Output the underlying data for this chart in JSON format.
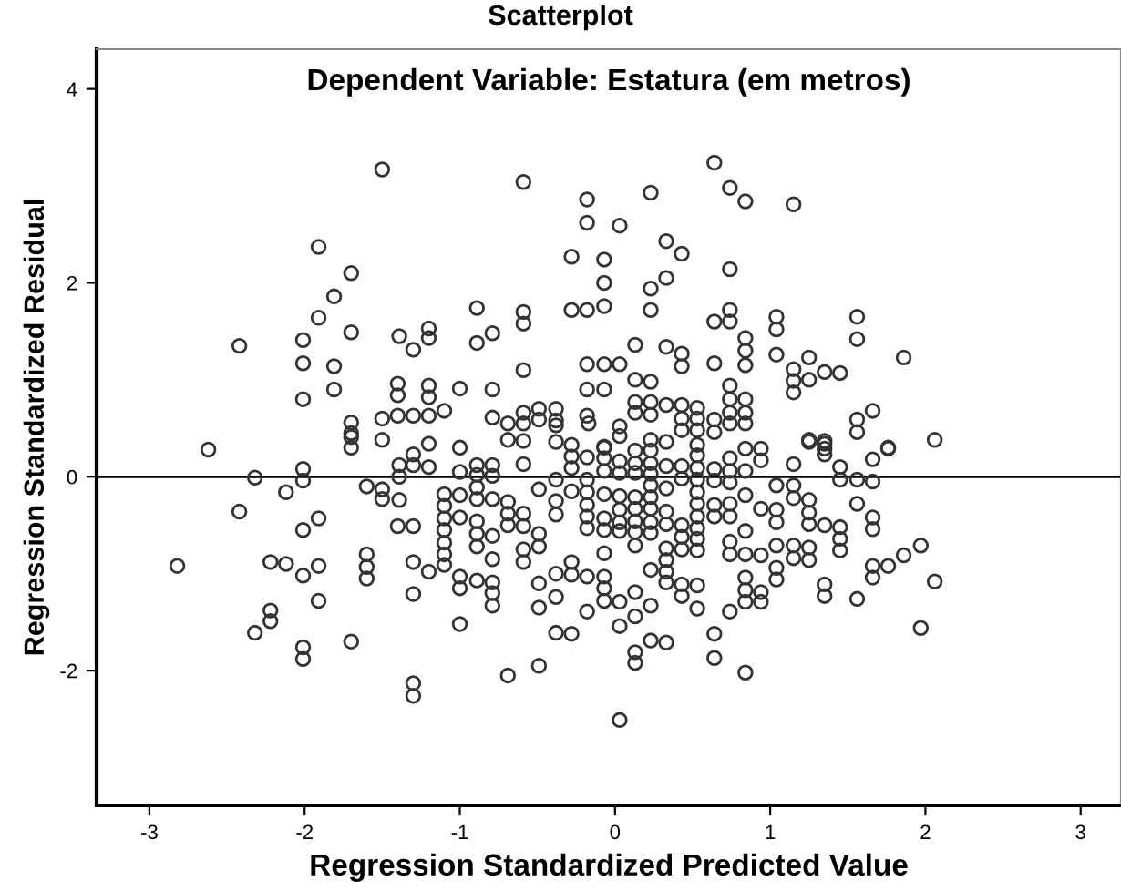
{
  "chart_data": {
    "type": "scatter",
    "title": "Scatterplot",
    "subtitle": "Dependent Variable: Estatura (em metros)",
    "xlabel": "Regression Standardized Predicted Value",
    "ylabel": "Regression Standardized Residual",
    "xlim": [
      -3.34,
      3.26
    ],
    "ylim": [
      -3.39,
      4.41
    ],
    "xticks": [
      -3,
      -2,
      -1,
      0,
      1,
      2,
      3
    ],
    "yticks": [
      -2,
      0,
      2,
      4
    ],
    "grid": false,
    "marker": "circle",
    "ref_lines": [
      {
        "axis": "y",
        "value": 0,
        "color": "#000000"
      }
    ],
    "series": [
      {
        "color": "#333333",
        "x": [
          -1.5,
          -0.59,
          -0.18,
          -0.18,
          -1.91,
          -1.7,
          -1.81,
          -1.91,
          -2.42,
          -2.01,
          -1.7,
          -2.01,
          -1.81,
          -2.01,
          -1.81,
          -1.39,
          -1.3,
          -1.2,
          -1.2,
          -0.89,
          -0.89,
          -0.79,
          -0.59,
          -0.59,
          -0.59,
          -0.28,
          -0.07,
          -0.07,
          -0.07,
          -0.28,
          -0.18,
          -1.4,
          -1.4,
          -1.2,
          -1.2,
          -1.0,
          -0.79,
          -1.1,
          -0.18,
          -0.07,
          -0.18,
          -0.07,
          -0.49,
          -0.38,
          -0.59,
          -0.18,
          -1.4,
          -1.3,
          -1.2,
          -1.5,
          -1.7,
          -1.7,
          -0.79,
          -0.69,
          -0.59,
          -0.49,
          -0.38,
          -0.38,
          -2.62,
          0.64,
          0.23,
          0.74,
          0.84,
          1.15,
          0.03,
          0.33,
          0.43,
          0.74,
          0.33,
          0.23,
          0.23,
          0.64,
          0.74,
          0.74,
          1.04,
          1.04,
          0.84,
          0.84,
          0.84,
          1.04,
          1.15,
          1.15,
          1.15,
          1.25,
          1.25,
          1.35,
          1.45,
          1.56,
          1.56,
          1.86,
          0.13,
          0.33,
          0.43,
          0.43,
          0.64,
          0.03,
          0.13,
          0.23,
          0.74,
          0.74,
          0.84,
          0.84,
          0.74,
          0.74,
          0.84,
          0.13,
          0.13,
          0.23,
          0.23,
          0.33,
          0.43,
          0.53,
          0.43,
          0.53,
          0.43,
          0.53,
          0.64,
          0.64,
          -0.17,
          0.03,
          0.03,
          -0.07,
          1.56,
          1.56,
          1.66,
          1.25,
          1.35,
          1.35,
          1.76,
          2.06,
          0.84,
          -2.82,
          -2.32,
          -2.42,
          -2.12,
          -2.01,
          -2.01,
          -2.01,
          -1.91,
          -2.22,
          -2.12,
          -2.01,
          -1.91,
          -1.91,
          -2.22,
          -2.22,
          -2.32,
          -2.01,
          -2.01,
          -1.7,
          -1.6,
          -1.5,
          -1.5,
          -1.39,
          -1.39,
          -1.39,
          -1.3,
          -1.3,
          -1.2,
          -1.2,
          -1.5,
          -1.7,
          -1.7,
          -1.4,
          -1.3,
          -1.6,
          -1.6,
          -1.6,
          -1.3,
          -1.2,
          -1.3,
          -1.3,
          -1.3,
          -1.1,
          -1.1,
          -1.1,
          -1.1,
          -1.1,
          -1.1,
          -1.1,
          -1.0,
          -1.0,
          -1.0,
          -1.0,
          -1.0,
          -1.0,
          -1.0,
          -0.89,
          -0.89,
          -0.89,
          -0.89,
          -0.89,
          -0.89,
          -0.89,
          -0.89,
          -0.79,
          -0.79,
          -0.79,
          -0.79,
          -0.79,
          -0.79,
          -0.79,
          -0.79,
          -0.69,
          -0.69,
          -0.69,
          -0.69,
          -0.69,
          -0.59,
          -0.59,
          -0.59,
          -0.59,
          -0.59,
          -0.59,
          -0.49,
          -0.49,
          -0.49,
          -0.49,
          -0.49,
          -0.49,
          -0.38,
          -0.38,
          -0.38,
          -0.38,
          -0.38,
          -0.38,
          -0.38,
          -0.28,
          -0.28,
          -0.28,
          -0.28,
          -0.28,
          -0.28,
          -0.28,
          -0.18,
          -0.18,
          -0.18,
          -0.18,
          -0.18,
          -0.18,
          -0.18,
          -0.18,
          -0.07,
          -0.07,
          -0.07,
          -0.07,
          -0.07,
          -0.07,
          -0.07,
          -0.07,
          -0.07,
          -0.07,
          0.03,
          0.03,
          0.03,
          0.03,
          0.03,
          0.03,
          0.03,
          0.03,
          0.03,
          0.13,
          0.13,
          0.13,
          0.13,
          0.13,
          0.13,
          0.13,
          0.13,
          0.13,
          0.13,
          0.13,
          0.13,
          0.23,
          0.23,
          0.23,
          0.23,
          0.23,
          0.23,
          0.23,
          0.23,
          0.23,
          0.23,
          0.23,
          0.23,
          0.33,
          0.33,
          0.33,
          0.33,
          0.33,
          0.33,
          0.33,
          0.33,
          0.33,
          0.33,
          0.43,
          0.43,
          0.43,
          0.43,
          0.43,
          0.43,
          0.43,
          0.53,
          0.53,
          0.53,
          0.53,
          0.53,
          0.53,
          0.53,
          0.53,
          0.53,
          0.53,
          0.53,
          0.53,
          0.64,
          0.64,
          0.64,
          0.64,
          0.64,
          0.64,
          0.74,
          0.74,
          0.74,
          0.74,
          0.74,
          0.74,
          0.74,
          0.74,
          0.84,
          0.84,
          0.84,
          0.84,
          0.84,
          0.84,
          0.84,
          0.84,
          0.94,
          0.94,
          0.94,
          0.94,
          0.94,
          0.94,
          1.04,
          1.04,
          1.04,
          1.04,
          1.04,
          1.04,
          1.15,
          1.15,
          1.15,
          1.15,
          1.15,
          1.25,
          1.25,
          1.25,
          1.25,
          1.25,
          1.25,
          1.35,
          1.35,
          1.35,
          1.35,
          1.35,
          1.45,
          1.45,
          1.45,
          1.45,
          1.45,
          1.56,
          1.56,
          1.56,
          1.66,
          1.66,
          1.66,
          1.66,
          1.66,
          1.66,
          1.76,
          1.76,
          1.86,
          1.97,
          1.97,
          2.06
        ],
        "values": [
          3.17,
          3.04,
          2.86,
          2.62,
          2.37,
          2.1,
          1.86,
          1.64,
          1.35,
          1.41,
          1.49,
          1.17,
          1.14,
          0.8,
          0.9,
          1.45,
          1.31,
          1.53,
          1.43,
          1.74,
          1.38,
          1.48,
          1.7,
          1.58,
          1.1,
          2.27,
          2.24,
          2.0,
          1.76,
          1.72,
          1.72,
          0.96,
          0.84,
          0.94,
          0.82,
          0.91,
          0.9,
          0.68,
          1.16,
          1.16,
          0.9,
          0.9,
          0.7,
          0.7,
          0.66,
          0.63,
          0.63,
          0.63,
          0.63,
          0.6,
          0.56,
          0.45,
          0.61,
          0.55,
          0.55,
          0.59,
          0.58,
          0.53,
          0.28,
          3.24,
          2.93,
          2.98,
          2.84,
          2.81,
          2.59,
          2.43,
          2.3,
          2.14,
          2.05,
          1.94,
          1.72,
          1.6,
          1.6,
          1.72,
          1.65,
          1.52,
          1.43,
          1.3,
          1.15,
          1.26,
          1.11,
          0.99,
          0.87,
          1.23,
          1.0,
          1.08,
          1.07,
          1.65,
          1.42,
          1.23,
          1.36,
          1.34,
          1.27,
          1.14,
          1.17,
          1.16,
          1.0,
          0.98,
          0.94,
          0.8,
          0.8,
          0.66,
          0.66,
          0.55,
          0.55,
          0.77,
          0.66,
          0.77,
          0.64,
          0.74,
          0.74,
          0.71,
          0.6,
          0.6,
          0.48,
          0.48,
          0.59,
          0.46,
          0.55,
          0.52,
          0.42,
          0.3,
          0.59,
          0.46,
          0.68,
          0.38,
          0.37,
          0.29,
          0.3,
          0.38,
          0.29,
          -0.92,
          -0.01,
          -0.36,
          -0.16,
          0.08,
          -0.04,
          -0.55,
          -0.43,
          -0.88,
          -0.9,
          -1.02,
          -0.92,
          -1.28,
          -1.38,
          -1.49,
          -1.61,
          -1.76,
          -1.88,
          -1.7,
          -0.1,
          -0.13,
          -0.23,
          -0.24,
          0.0,
          0.12,
          0.12,
          0.23,
          0.1,
          0.34,
          0.38,
          0.3,
          0.41,
          -0.51,
          -0.51,
          -0.8,
          -0.93,
          -1.05,
          -0.88,
          -0.98,
          -1.21,
          -2.13,
          -2.26,
          -0.18,
          -0.3,
          -0.43,
          -0.55,
          -0.68,
          -0.8,
          -0.91,
          0.3,
          0.05,
          -0.19,
          -0.42,
          -1.03,
          -1.15,
          -1.52,
          0.12,
          0.02,
          -0.11,
          -0.23,
          -0.46,
          -0.59,
          -0.72,
          -1.07,
          0.12,
          0.01,
          -0.23,
          -0.61,
          -0.85,
          -1.09,
          -1.2,
          -1.33,
          0.38,
          -0.26,
          -0.38,
          -0.5,
          -2.05,
          0.37,
          0.13,
          -0.38,
          -0.51,
          -0.75,
          -0.88,
          -0.13,
          -0.59,
          -0.72,
          -1.1,
          -1.35,
          -1.95,
          0.36,
          -0.03,
          -0.25,
          -0.39,
          -1.0,
          -1.24,
          -1.61,
          0.33,
          0.21,
          0.09,
          -0.15,
          -0.88,
          -1.01,
          -1.62,
          0.2,
          -0.03,
          -0.16,
          -0.29,
          -0.41,
          -0.53,
          -1.39,
          -1.03,
          0.31,
          0.19,
          0.06,
          -0.18,
          -0.43,
          -0.55,
          -0.79,
          -1.03,
          -1.15,
          -1.28,
          0.16,
          0.04,
          -0.2,
          -0.34,
          -0.47,
          -0.56,
          -1.29,
          -1.54,
          -2.51,
          0.27,
          0.14,
          0.04,
          -0.21,
          -0.33,
          -0.46,
          -0.57,
          -0.71,
          -1.19,
          -1.44,
          -1.81,
          -1.92,
          0.38,
          0.27,
          0.14,
          0.03,
          -0.09,
          -0.21,
          -0.33,
          -0.47,
          -0.58,
          -0.96,
          -1.33,
          -1.69,
          0.36,
          0.11,
          -0.12,
          -0.36,
          -0.49,
          -0.74,
          -0.86,
          -0.98,
          -1.09,
          -1.71,
          0.11,
          -0.02,
          -0.5,
          -0.62,
          -0.75,
          -1.11,
          -1.23,
          0.33,
          0.22,
          0.09,
          -0.03,
          -0.16,
          -0.28,
          -0.41,
          -0.53,
          -0.64,
          -0.76,
          -1.12,
          -1.36,
          0.08,
          -0.04,
          -0.29,
          -0.41,
          -1.62,
          -1.87,
          0.19,
          0.06,
          -0.06,
          -0.28,
          -0.41,
          -0.67,
          -0.8,
          -1.39,
          0.06,
          -0.19,
          -0.56,
          -0.8,
          -1.04,
          -1.17,
          -1.29,
          -2.02,
          0.29,
          0.17,
          -0.33,
          -0.81,
          -1.19,
          -1.29,
          -0.09,
          -0.34,
          -0.47,
          -0.71,
          -0.94,
          -1.06,
          0.13,
          -0.09,
          -0.22,
          -0.71,
          -0.84,
          0.36,
          -0.24,
          -0.37,
          -0.49,
          -0.73,
          -0.86,
          0.34,
          0.23,
          -0.5,
          -1.11,
          -1.23,
          0.1,
          -0.03,
          -0.52,
          -0.64,
          -0.76,
          -0.03,
          -0.28,
          -1.26,
          0.18,
          -0.05,
          -0.42,
          -0.54,
          -0.92,
          -1.04,
          0.29,
          -0.92,
          -0.81,
          -0.71,
          -1.56,
          -1.08
        ]
      }
    ]
  }
}
